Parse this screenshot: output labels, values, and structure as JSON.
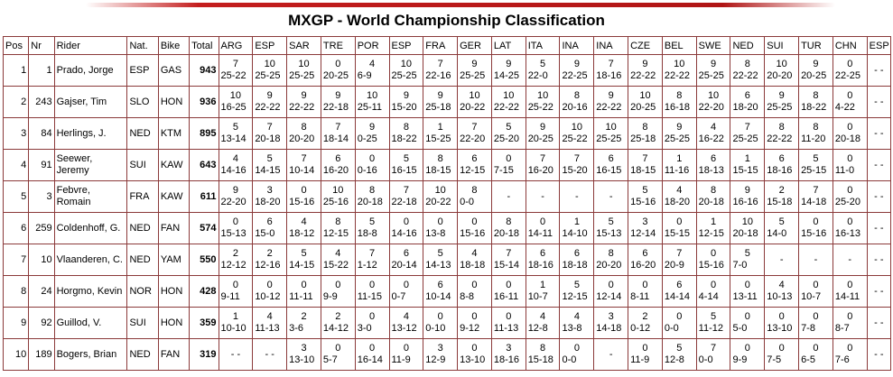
{
  "title": "MXGP - World Championship Classification",
  "table": {
    "columns": [
      "Pos",
      "Nr",
      "Rider",
      "Nat.",
      "Bike",
      "Total",
      "ARG",
      "ESP",
      "SAR",
      "TRE",
      "POR",
      "ESP",
      "FRA",
      "GER",
      "LAT",
      "ITA",
      "INA",
      "INA",
      "CZE",
      "BEL",
      "SWE",
      "NED",
      "SUI",
      "TUR",
      "CHN",
      "ESP"
    ],
    "rows": [
      {
        "pos": 1,
        "nr": 1,
        "rider": "Prado, Jorge",
        "nat": "ESP",
        "bike": "GAS",
        "total": 943,
        "races": [
          {
            "p": 7,
            "s": "25-22"
          },
          {
            "p": 10,
            "s": "25-25"
          },
          {
            "p": 10,
            "s": "25-25"
          },
          {
            "p": 0,
            "s": "20-25"
          },
          {
            "p": 4,
            "s": "6-9"
          },
          {
            "p": 10,
            "s": "25-25"
          },
          {
            "p": 7,
            "s": "22-16"
          },
          {
            "p": 9,
            "s": "25-25"
          },
          {
            "p": 9,
            "s": "14-25"
          },
          {
            "p": 5,
            "s": "22-0"
          },
          {
            "p": 9,
            "s": "22-25"
          },
          {
            "p": 7,
            "s": "18-16"
          },
          {
            "p": 9,
            "s": "22-22"
          },
          {
            "p": 10,
            "s": "22-22"
          },
          {
            "p": 9,
            "s": "25-25"
          },
          {
            "p": 8,
            "s": "22-22"
          },
          {
            "p": 10,
            "s": "20-20"
          },
          {
            "p": 9,
            "s": "20-25"
          },
          {
            "p": 0,
            "s": "22-25"
          },
          {
            "t": "- -"
          }
        ]
      },
      {
        "pos": 2,
        "nr": 243,
        "rider": "Gajser, Tim",
        "nat": "SLO",
        "bike": "HON",
        "total": 936,
        "races": [
          {
            "p": 10,
            "s": "16-25"
          },
          {
            "p": 9,
            "s": "22-22"
          },
          {
            "p": 9,
            "s": "22-22"
          },
          {
            "p": 9,
            "s": "22-18"
          },
          {
            "p": 10,
            "s": "25-11"
          },
          {
            "p": 9,
            "s": "15-20"
          },
          {
            "p": 9,
            "s": "25-18"
          },
          {
            "p": 10,
            "s": "20-22"
          },
          {
            "p": 10,
            "s": "22-22"
          },
          {
            "p": 10,
            "s": "25-22"
          },
          {
            "p": 8,
            "s": "20-16"
          },
          {
            "p": 9,
            "s": "22-22"
          },
          {
            "p": 10,
            "s": "20-25"
          },
          {
            "p": 8,
            "s": "16-18"
          },
          {
            "p": 10,
            "s": "22-20"
          },
          {
            "p": 6,
            "s": "18-20"
          },
          {
            "p": 9,
            "s": "25-25"
          },
          {
            "p": 8,
            "s": "18-22"
          },
          {
            "p": 0,
            "s": "4-22"
          },
          {
            "t": "- -"
          }
        ]
      },
      {
        "pos": 3,
        "nr": 84,
        "rider": "Herlings, J.",
        "nat": "NED",
        "bike": "KTM",
        "total": 895,
        "races": [
          {
            "p": 5,
            "s": "13-14"
          },
          {
            "p": 7,
            "s": "20-18"
          },
          {
            "p": 8,
            "s": "20-20"
          },
          {
            "p": 7,
            "s": "18-14"
          },
          {
            "p": 9,
            "s": "0-25"
          },
          {
            "p": 8,
            "s": "18-22"
          },
          {
            "p": 1,
            "s": "15-25"
          },
          {
            "p": 7,
            "s": "22-20"
          },
          {
            "p": 5,
            "s": "25-20"
          },
          {
            "p": 9,
            "s": "20-25"
          },
          {
            "p": 10,
            "s": "25-22"
          },
          {
            "p": 10,
            "s": "25-25"
          },
          {
            "p": 8,
            "s": "25-18"
          },
          {
            "p": 9,
            "s": "25-25"
          },
          {
            "p": 4,
            "s": "16-22"
          },
          {
            "p": 7,
            "s": "25-25"
          },
          {
            "p": 8,
            "s": "22-22"
          },
          {
            "p": 8,
            "s": "11-20"
          },
          {
            "p": 0,
            "s": "20-18"
          },
          {
            "t": "- -"
          }
        ]
      },
      {
        "pos": 4,
        "nr": 91,
        "rider": "Seewer, Jeremy",
        "nat": "SUI",
        "bike": "KAW",
        "total": 643,
        "races": [
          {
            "p": 4,
            "s": "14-16"
          },
          {
            "p": 5,
            "s": "14-15"
          },
          {
            "p": 7,
            "s": "10-14"
          },
          {
            "p": 6,
            "s": "16-20"
          },
          {
            "p": 0,
            "s": "0-16"
          },
          {
            "p": 5,
            "s": "16-15"
          },
          {
            "p": 8,
            "s": "18-15"
          },
          {
            "p": 6,
            "s": "12-15"
          },
          {
            "p": 0,
            "s": "7-15"
          },
          {
            "p": 7,
            "s": "16-20"
          },
          {
            "p": 7,
            "s": "15-20"
          },
          {
            "p": 6,
            "s": "16-15"
          },
          {
            "p": 7,
            "s": "18-15"
          },
          {
            "p": 1,
            "s": "11-16"
          },
          {
            "p": 6,
            "s": "18-13"
          },
          {
            "p": 1,
            "s": "15-15"
          },
          {
            "p": 6,
            "s": "18-16"
          },
          {
            "p": 5,
            "s": "25-15"
          },
          {
            "p": 0,
            "s": "11-0"
          },
          {
            "t": "- -"
          }
        ]
      },
      {
        "pos": 5,
        "nr": 3,
        "rider": "Febvre, Romain",
        "nat": "FRA",
        "bike": "KAW",
        "total": 611,
        "races": [
          {
            "p": 9,
            "s": "22-20"
          },
          {
            "p": 3,
            "s": "18-20"
          },
          {
            "p": 0,
            "s": "15-16"
          },
          {
            "p": 10,
            "s": "25-16"
          },
          {
            "p": 8,
            "s": "20-18"
          },
          {
            "p": 7,
            "s": "22-18"
          },
          {
            "p": 10,
            "s": "20-22"
          },
          {
            "p": 8,
            "s": "0-0"
          },
          {
            "t": "-"
          },
          {
            "t": "-"
          },
          {
            "t": "-"
          },
          {
            "t": "-"
          },
          {
            "p": 5,
            "s": "15-16"
          },
          {
            "p": 4,
            "s": "18-20"
          },
          {
            "p": 8,
            "s": "20-18"
          },
          {
            "p": 9,
            "s": "16-16"
          },
          {
            "p": 2,
            "s": "15-18"
          },
          {
            "p": 7,
            "s": "14-18"
          },
          {
            "p": 0,
            "s": "25-20"
          },
          {
            "t": "- -"
          }
        ]
      },
      {
        "pos": 6,
        "nr": 259,
        "rider": "Coldenhoff, G.",
        "nat": "NED",
        "bike": "FAN",
        "total": 574,
        "races": [
          {
            "p": 0,
            "s": "15-13"
          },
          {
            "p": 6,
            "s": "15-0"
          },
          {
            "p": 4,
            "s": "18-12"
          },
          {
            "p": 8,
            "s": "12-15"
          },
          {
            "p": 5,
            "s": "18-8"
          },
          {
            "p": 0,
            "s": "14-16"
          },
          {
            "p": 0,
            "s": "13-8"
          },
          {
            "p": 0,
            "s": "15-16"
          },
          {
            "p": 8,
            "s": "20-18"
          },
          {
            "p": 0,
            "s": "14-11"
          },
          {
            "p": 1,
            "s": "14-10"
          },
          {
            "p": 5,
            "s": "15-13"
          },
          {
            "p": 3,
            "s": "12-14"
          },
          {
            "p": 0,
            "s": "15-15"
          },
          {
            "p": 1,
            "s": "12-15"
          },
          {
            "p": 10,
            "s": "20-18"
          },
          {
            "p": 5,
            "s": "14-0"
          },
          {
            "p": 0,
            "s": "15-16"
          },
          {
            "p": 0,
            "s": "16-13"
          },
          {
            "t": "- -"
          }
        ]
      },
      {
        "pos": 7,
        "nr": 10,
        "rider": "Vlaanderen, C.",
        "nat": "NED",
        "bike": "YAM",
        "total": 550,
        "races": [
          {
            "p": 2,
            "s": "12-12"
          },
          {
            "p": 2,
            "s": "12-16"
          },
          {
            "p": 5,
            "s": "14-15"
          },
          {
            "p": 4,
            "s": "15-22"
          },
          {
            "p": 7,
            "s": "1-12"
          },
          {
            "p": 6,
            "s": "20-14"
          },
          {
            "p": 5,
            "s": "14-13"
          },
          {
            "p": 4,
            "s": "18-18"
          },
          {
            "p": 7,
            "s": "15-14"
          },
          {
            "p": 6,
            "s": "18-16"
          },
          {
            "p": 6,
            "s": "18-18"
          },
          {
            "p": 8,
            "s": "20-20"
          },
          {
            "p": 6,
            "s": "16-20"
          },
          {
            "p": 7,
            "s": "20-9"
          },
          {
            "p": 0,
            "s": "15-16"
          },
          {
            "p": 5,
            "s": "7-0"
          },
          {
            "t": "-"
          },
          {
            "t": "-"
          },
          {
            "t": "-"
          },
          {
            "t": "- -"
          }
        ]
      },
      {
        "pos": 8,
        "nr": 24,
        "rider": "Horgmo, Kevin",
        "nat": "NOR",
        "bike": "HON",
        "total": 428,
        "races": [
          {
            "p": 0,
            "s": "9-11"
          },
          {
            "p": 0,
            "s": "10-12"
          },
          {
            "p": 0,
            "s": "11-11"
          },
          {
            "p": 0,
            "s": "9-9"
          },
          {
            "p": 0,
            "s": "11-15"
          },
          {
            "p": 0,
            "s": "0-7"
          },
          {
            "p": 6,
            "s": "10-14"
          },
          {
            "p": 0,
            "s": "8-8"
          },
          {
            "p": 0,
            "s": "16-11"
          },
          {
            "p": 1,
            "s": "10-7"
          },
          {
            "p": 5,
            "s": "12-15"
          },
          {
            "p": 0,
            "s": "12-14"
          },
          {
            "p": 0,
            "s": "8-11"
          },
          {
            "p": 6,
            "s": "14-14"
          },
          {
            "p": 0,
            "s": "4-14"
          },
          {
            "p": 0,
            "s": "13-11"
          },
          {
            "p": 4,
            "s": "10-13"
          },
          {
            "p": 0,
            "s": "10-7"
          },
          {
            "p": 0,
            "s": "14-11"
          },
          {
            "t": "- -"
          }
        ]
      },
      {
        "pos": 9,
        "nr": 92,
        "rider": "Guillod, V.",
        "nat": "SUI",
        "bike": "HON",
        "total": 359,
        "races": [
          {
            "p": 1,
            "s": "10-10"
          },
          {
            "p": 4,
            "s": "11-13"
          },
          {
            "p": 2,
            "s": "3-6"
          },
          {
            "p": 2,
            "s": "14-12"
          },
          {
            "p": 0,
            "s": "3-0"
          },
          {
            "p": 4,
            "s": "13-12"
          },
          {
            "p": 0,
            "s": "0-10"
          },
          {
            "p": 0,
            "s": "9-12"
          },
          {
            "p": 0,
            "s": "11-13"
          },
          {
            "p": 4,
            "s": "12-8"
          },
          {
            "p": 4,
            "s": "13-8"
          },
          {
            "p": 3,
            "s": "14-18"
          },
          {
            "p": 2,
            "s": "0-12"
          },
          {
            "p": 0,
            "s": "0-0"
          },
          {
            "p": 5,
            "s": "11-12"
          },
          {
            "p": 0,
            "s": "5-0"
          },
          {
            "p": 0,
            "s": "13-10"
          },
          {
            "p": 0,
            "s": "7-8"
          },
          {
            "p": 0,
            "s": "8-7"
          },
          {
            "t": "- -"
          }
        ]
      },
      {
        "pos": 10,
        "nr": 189,
        "rider": "Bogers, Brian",
        "nat": "NED",
        "bike": "FAN",
        "total": 319,
        "races": [
          {
            "t": "- -"
          },
          {
            "t": "- -"
          },
          {
            "p": 3,
            "s": "13-10"
          },
          {
            "p": 0,
            "s": "5-7"
          },
          {
            "p": 0,
            "s": "16-14"
          },
          {
            "p": 0,
            "s": "11-9"
          },
          {
            "p": 3,
            "s": "12-9"
          },
          {
            "p": 0,
            "s": "13-10"
          },
          {
            "p": 3,
            "s": "18-16"
          },
          {
            "p": 8,
            "s": "15-18"
          },
          {
            "p": 0,
            "s": "0-0"
          },
          {
            "t": "-"
          },
          {
            "p": 0,
            "s": "11-9"
          },
          {
            "p": 5,
            "s": "12-8"
          },
          {
            "p": 7,
            "s": "0-0"
          },
          {
            "p": 0,
            "s": "9-9"
          },
          {
            "p": 0,
            "s": "7-5"
          },
          {
            "p": 0,
            "s": "6-5"
          },
          {
            "p": 0,
            "s": "7-6"
          },
          {
            "t": "- -"
          }
        ]
      }
    ]
  }
}
